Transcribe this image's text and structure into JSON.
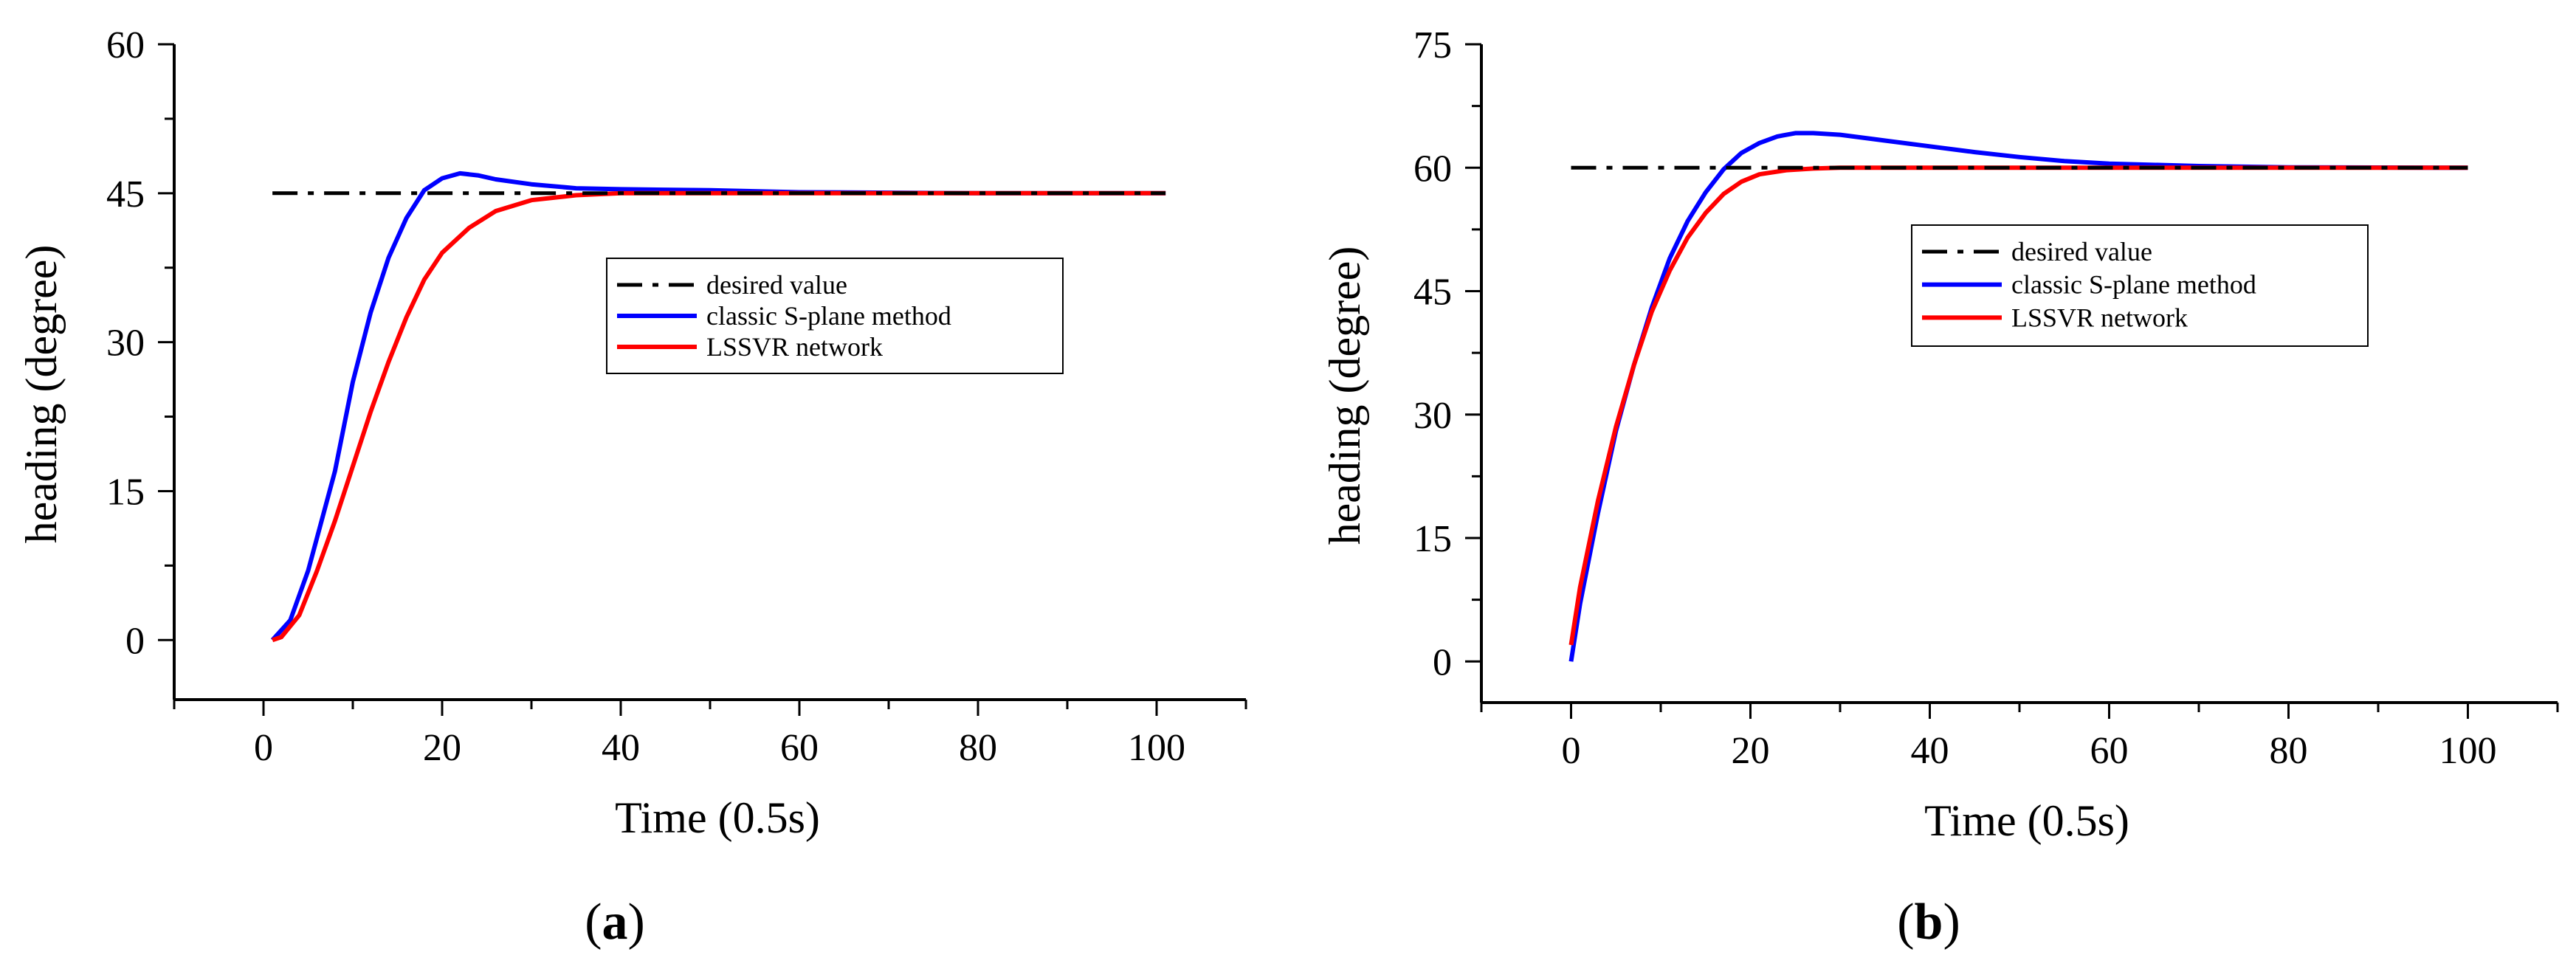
{
  "colors": {
    "desired": "#000000",
    "classic": "#0000ff",
    "lssvr": "#ff0000",
    "axis": "#000000"
  },
  "chart_data": [
    {
      "type": "line",
      "panel": "(a)",
      "panel_open": "(",
      "panel_letter": "a",
      "panel_close": ")",
      "xlabel": "Time (0.5s)",
      "ylabel": "heading (degree)",
      "xlim": [
        -10,
        110
      ],
      "ylim": [
        -6,
        60
      ],
      "xticks": [
        0,
        20,
        40,
        60,
        80,
        100
      ],
      "yticks": [
        0,
        15,
        30,
        45,
        60
      ],
      "grid": false,
      "legend_position": "center-right",
      "series": [
        {
          "name": "desired value",
          "style": "dash-dot",
          "color_key": "desired",
          "points": [
            [
              1,
              45
            ],
            [
              101,
              45
            ]
          ]
        },
        {
          "name": "classic S-plane method",
          "style": "solid",
          "color_key": "classic",
          "points": [
            [
              1,
              0
            ],
            [
              3,
              2
            ],
            [
              5,
              7
            ],
            [
              8,
              17
            ],
            [
              10,
              26
            ],
            [
              12,
              33
            ],
            [
              14,
              38.5
            ],
            [
              16,
              42.5
            ],
            [
              18,
              45.3
            ],
            [
              20,
              46.5
            ],
            [
              22,
              47
            ],
            [
              24,
              46.8
            ],
            [
              26,
              46.4
            ],
            [
              30,
              45.9
            ],
            [
              35,
              45.5
            ],
            [
              40,
              45.4
            ],
            [
              50,
              45.3
            ],
            [
              60,
              45.1
            ],
            [
              70,
              45.05
            ],
            [
              80,
              45
            ],
            [
              101,
              45
            ]
          ]
        },
        {
          "name": "LSSVR network",
          "style": "solid",
          "color_key": "lssvr",
          "points": [
            [
              1,
              0
            ],
            [
              2,
              0.3
            ],
            [
              4,
              2.5
            ],
            [
              6,
              7
            ],
            [
              8,
              12
            ],
            [
              10,
              17.5
            ],
            [
              12,
              23
            ],
            [
              14,
              28
            ],
            [
              16,
              32.5
            ],
            [
              18,
              36.3
            ],
            [
              20,
              39
            ],
            [
              23,
              41.5
            ],
            [
              26,
              43.2
            ],
            [
              30,
              44.3
            ],
            [
              35,
              44.8
            ],
            [
              40,
              45
            ],
            [
              50,
              45
            ],
            [
              101,
              45
            ]
          ]
        }
      ]
    },
    {
      "type": "line",
      "panel": "(b)",
      "panel_open": "(",
      "panel_letter": "b",
      "panel_close": ")",
      "xlabel": "Time (0.5s)",
      "ylabel": "heading (degree)",
      "xlim": [
        -10,
        110
      ],
      "ylim": [
        -5,
        75
      ],
      "xticks": [
        0,
        20,
        40,
        60,
        80,
        100
      ],
      "yticks": [
        0,
        15,
        30,
        45,
        60,
        75
      ],
      "grid": false,
      "legend_position": "center-right",
      "series": [
        {
          "name": "desired value",
          "style": "dash-dot",
          "color_key": "desired",
          "points": [
            [
              0,
              60
            ],
            [
              100,
              60
            ]
          ]
        },
        {
          "name": "classic S-plane method",
          "style": "solid",
          "color_key": "classic",
          "points": [
            [
              0,
              0
            ],
            [
              1,
              7
            ],
            [
              3,
              18
            ],
            [
              5,
              28
            ],
            [
              7,
              36
            ],
            [
              9,
              43
            ],
            [
              11,
              49
            ],
            [
              13,
              53.5
            ],
            [
              15,
              57
            ],
            [
              17,
              59.8
            ],
            [
              19,
              61.8
            ],
            [
              21,
              63
            ],
            [
              23,
              63.8
            ],
            [
              25,
              64.2
            ],
            [
              27,
              64.2
            ],
            [
              30,
              64
            ],
            [
              35,
              63.3
            ],
            [
              40,
              62.6
            ],
            [
              45,
              61.9
            ],
            [
              50,
              61.3
            ],
            [
              55,
              60.8
            ],
            [
              60,
              60.5
            ],
            [
              70,
              60.2
            ],
            [
              80,
              60.05
            ],
            [
              100,
              60
            ]
          ]
        },
        {
          "name": "LSSVR network",
          "style": "solid",
          "color_key": "lssvr",
          "points": [
            [
              0,
              2
            ],
            [
              1,
              9
            ],
            [
              3,
              19.5
            ],
            [
              5,
              28.5
            ],
            [
              7,
              36
            ],
            [
              9,
              42.5
            ],
            [
              11,
              47.5
            ],
            [
              13,
              51.5
            ],
            [
              15,
              54.5
            ],
            [
              17,
              56.8
            ],
            [
              19,
              58.3
            ],
            [
              21,
              59.2
            ],
            [
              24,
              59.7
            ],
            [
              27,
              59.9
            ],
            [
              30,
              60
            ],
            [
              100,
              60
            ]
          ]
        }
      ]
    }
  ]
}
